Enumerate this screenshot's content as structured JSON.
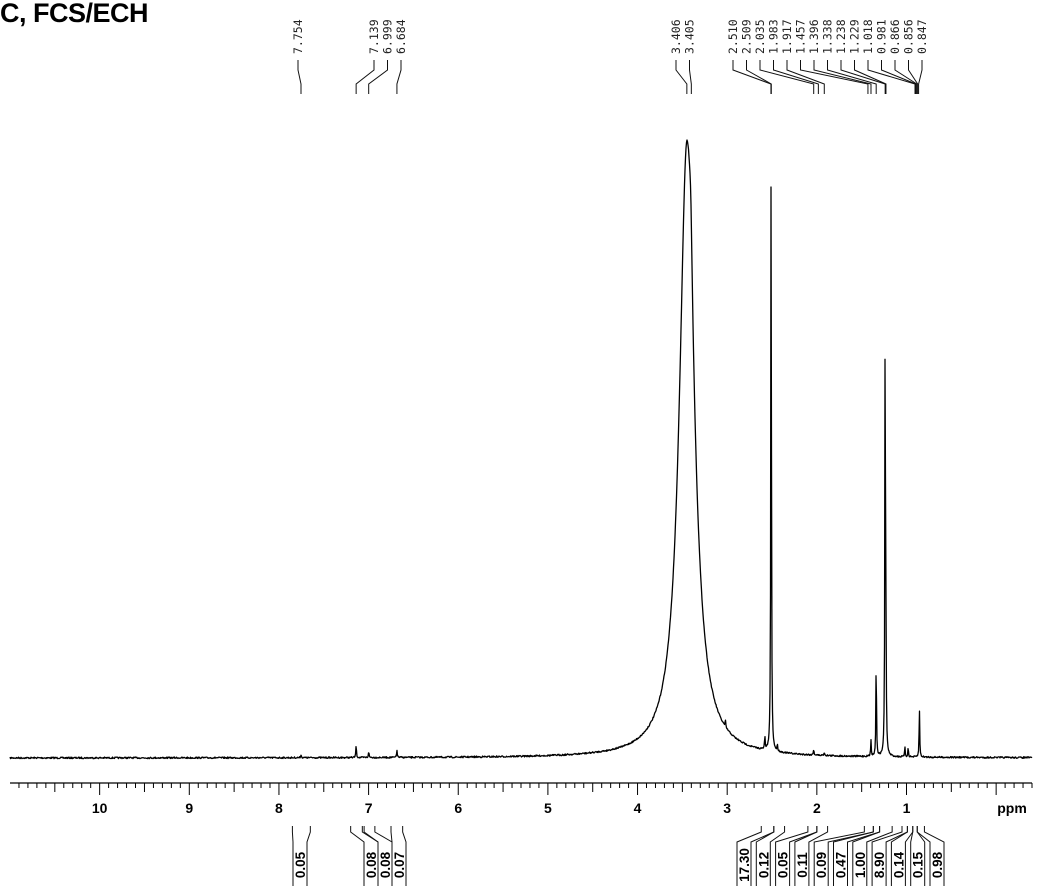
{
  "chart_data": {
    "type": "line",
    "title": "C, FCS/ECH",
    "xlabel": "ppm",
    "xlim": [
      11.0,
      -0.4
    ],
    "x_reversed": true,
    "x_ticks": [
      10,
      9,
      8,
      7,
      6,
      5,
      4,
      3,
      2,
      1
    ],
    "grid": false,
    "peak_labels": [
      "7.754",
      "7.139",
      "6.999",
      "6.684",
      "3.406",
      "3.405",
      "2.510",
      "2.509",
      "2.035",
      "1.983",
      "1.917",
      "1.457",
      "1.396",
      "1.338",
      "1.238",
      "1.229",
      "1.018",
      "0.981",
      "0.866",
      "0.856",
      "0.847"
    ],
    "peaks": [
      {
        "ppm": 7.754,
        "height": 0.005
      },
      {
        "ppm": 7.139,
        "height": 0.02
      },
      {
        "ppm": 6.999,
        "height": 0.01
      },
      {
        "ppm": 6.684,
        "height": 0.012
      },
      {
        "ppm": 3.45,
        "height": 0.93,
        "width": 0.1,
        "shape": "lorentzian"
      },
      {
        "ppm": 3.406,
        "height": 0.08,
        "width": 0.02,
        "shape": "lorentzian"
      },
      {
        "ppm": 3.02,
        "height": 0.01
      },
      {
        "ppm": 2.58,
        "height": 0.02
      },
      {
        "ppm": 2.51,
        "height": 0.96
      },
      {
        "ppm": 2.44,
        "height": 0.01
      },
      {
        "ppm": 2.035,
        "height": 0.01
      },
      {
        "ppm": 1.917,
        "height": 0.006
      },
      {
        "ppm": 1.396,
        "height": 0.025
      },
      {
        "ppm": 1.338,
        "height": 0.155
      },
      {
        "ppm": 1.238,
        "height": 0.7
      },
      {
        "ppm": 1.229,
        "height": 0.14
      },
      {
        "ppm": 1.018,
        "height": 0.015
      },
      {
        "ppm": 0.981,
        "height": 0.015
      },
      {
        "ppm": 0.856,
        "height": 0.075
      }
    ],
    "integrals": [
      {
        "value": "0.05",
        "from": 7.85,
        "to": 7.65
      },
      {
        "value": "0.08",
        "from": 7.2,
        "to": 7.07
      },
      {
        "value": "0.08",
        "from": 7.05,
        "to": 6.93
      },
      {
        "value": "0.07",
        "from": 6.75,
        "to": 6.62
      },
      {
        "value": "17.30",
        "from": 2.62,
        "to": 2.48
      },
      {
        "value": "0.12",
        "from": 2.48,
        "to": 2.36
      },
      {
        "value": "0.05",
        "from": 2.1,
        "to": 2.0
      },
      {
        "value": "0.11",
        "from": 2.0,
        "to": 1.88
      },
      {
        "value": "0.09",
        "from": 1.47,
        "to": 1.37
      },
      {
        "value": "0.47",
        "from": 1.37,
        "to": 1.3
      },
      {
        "value": "1.00",
        "from": 1.3,
        "to": 1.16
      },
      {
        "value": "8.90",
        "from": 1.05,
        "to": 0.99
      },
      {
        "value": "0.14",
        "from": 0.99,
        "to": 0.93
      },
      {
        "value": "0.15",
        "from": 0.93,
        "to": 0.88
      },
      {
        "value": "0.98",
        "from": 0.88,
        "to": 0.8
      }
    ]
  },
  "colors": {
    "trace": "#000000",
    "labels": "#222222"
  }
}
